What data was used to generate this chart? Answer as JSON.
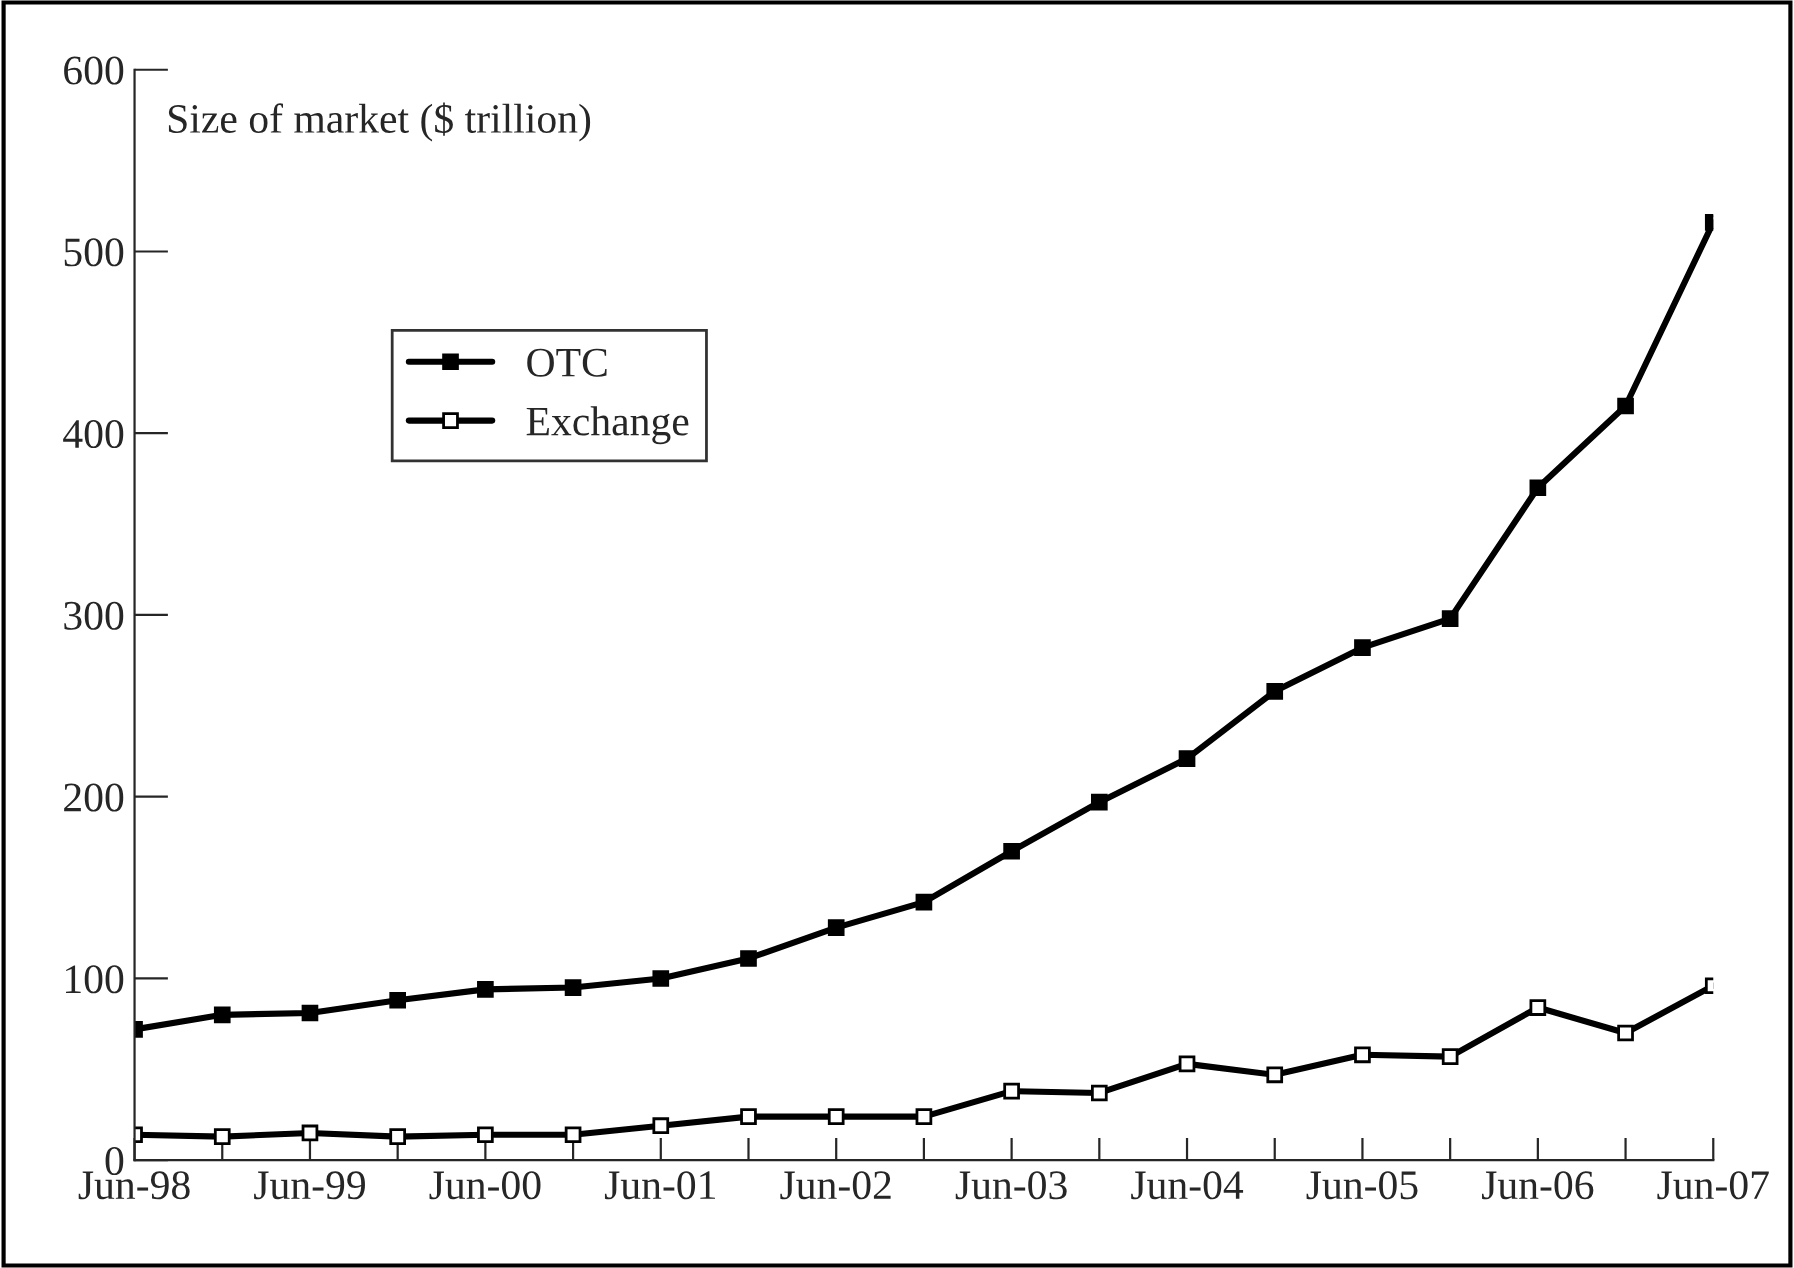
{
  "chart_data": {
    "type": "line",
    "ylabel": "Size of market ($ trillion)",
    "categories": [
      "Jun-98",
      null,
      "Jun-99",
      null,
      "Jun-00",
      null,
      "Jun-01",
      null,
      "Jun-02",
      null,
      "Jun-03",
      null,
      "Jun-04",
      null,
      "Jun-05",
      null,
      "Jun-06",
      null,
      "Jun-07"
    ],
    "series": [
      {
        "name": "OTC",
        "color": "#000000",
        "values": [
          72,
          80,
          81,
          88,
          94,
          95,
          100,
          111,
          128,
          142,
          170,
          197,
          221,
          258,
          282,
          298,
          370,
          415,
          516
        ]
      },
      {
        "name": "Exchange",
        "color": "#000000",
        "values": [
          14,
          13,
          15,
          13,
          14,
          14,
          19,
          24,
          24,
          24,
          38,
          37,
          53,
          47,
          58,
          57,
          84,
          70,
          96
        ]
      }
    ],
    "ylim": [
      0,
      600
    ],
    "yticks": [
      0,
      100,
      200,
      300,
      400,
      500,
      600
    ],
    "marker": "square",
    "line_style": "solid",
    "grid": false,
    "legend": "top left"
  }
}
